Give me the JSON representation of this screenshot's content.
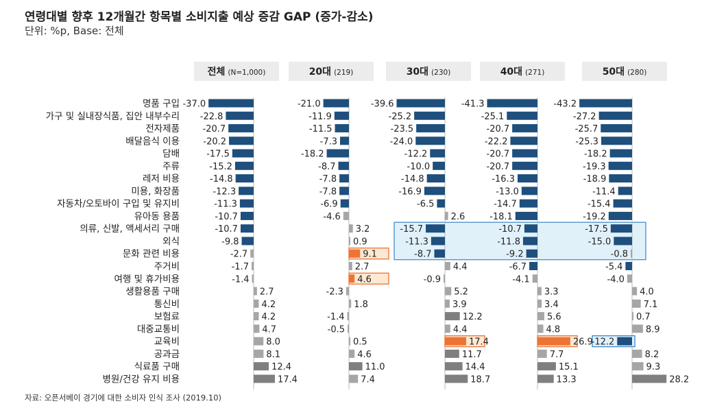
{
  "title": "연령대별 향후 12개월간 항목별 소비지출 예상 증감 GAP (증가-감소)",
  "subtitle": "단위: %p, Base: 전체",
  "source": "자료: 오픈서베이 경기에 대한 소비자 인식 조사 (2019.10)",
  "colors": {
    "negative": "#1e4f7d",
    "positive": "#a6a6a6",
    "positive_large": "#7f7f7f",
    "highlight_bar": "#ed7434",
    "highlight_fill": "#fde8d3",
    "highlight_stroke": "#ed7434",
    "box_fill": "#e1f1fa",
    "box_stroke": "#3a86c8",
    "header_bg": "#ececec"
  },
  "chart_data": {
    "type": "bar",
    "orientation": "horizontal",
    "title": "연령대별 향후 12개월간 항목별 소비지출 예상 증감 GAP (증가-감소)",
    "unit": "%p",
    "categories": [
      "명품 구입",
      "가구 및 실내장식품, 집안 내부수리",
      "전자제품",
      "배달음식 이용",
      "담배",
      "주류",
      "레저 비용",
      "미용, 화장품",
      "자동차/오토바이 구입 및 유지비",
      "유아동 용품",
      "의류, 신발, 액세서리 구매",
      "외식",
      "문화 관련 비용",
      "주거비",
      "여행 및 휴가비용",
      "생활용품 구매",
      "통신비",
      "보험료",
      "대중교통비",
      "교육비",
      "공과금",
      "식료품 구매",
      "병원/건강 유지 비용"
    ],
    "series": [
      {
        "name": "전체",
        "note": "(N=1,000)",
        "values": [
          -37.0,
          -22.8,
          -20.7,
          -20.2,
          -17.5,
          -15.2,
          -14.8,
          -12.3,
          -11.3,
          -10.7,
          -10.7,
          -9.8,
          -2.7,
          -1.7,
          -1.4,
          2.7,
          4.2,
          4.2,
          4.7,
          8.0,
          8.1,
          12.4,
          17.4
        ]
      },
      {
        "name": "20대",
        "note": "(219)",
        "values": [
          -21.0,
          -11.9,
          -11.5,
          -7.3,
          -18.2,
          -8.7,
          -7.8,
          -7.8,
          -6.9,
          -4.6,
          3.2,
          0.9,
          9.1,
          2.7,
          4.6,
          -2.3,
          1.8,
          -1.4,
          -0.5,
          0.5,
          4.6,
          11.0,
          7.4
        ]
      },
      {
        "name": "30대",
        "note": "(230)",
        "values": [
          -39.6,
          -25.2,
          -23.5,
          -24.0,
          -12.2,
          -10.0,
          -14.8,
          -16.9,
          -6.5,
          2.6,
          -15.7,
          -11.3,
          -8.7,
          4.4,
          -0.9,
          5.2,
          3.9,
          12.2,
          4.4,
          17.4,
          11.7,
          14.4,
          18.7
        ]
      },
      {
        "name": "40대",
        "note": "(271)",
        "values": [
          -41.3,
          -25.1,
          -20.7,
          -22.2,
          -20.7,
          -20.7,
          -16.3,
          -13.0,
          -14.7,
          -18.1,
          -10.7,
          -11.8,
          -9.2,
          -6.7,
          -4.1,
          3.3,
          3.4,
          5.6,
          4.8,
          26.9,
          7.7,
          15.1,
          13.3
        ]
      },
      {
        "name": "50대",
        "note": "(280)",
        "values": [
          -43.2,
          -27.2,
          -25.7,
          -25.3,
          -18.2,
          -19.3,
          -18.9,
          -11.4,
          -15.4,
          -19.2,
          -17.5,
          -15.0,
          -0.8,
          -5.4,
          -4.0,
          4.0,
          7.1,
          0.7,
          8.9,
          -12.2,
          8.2,
          9.3,
          28.2
        ]
      }
    ],
    "highlights": [
      {
        "series": "20대",
        "category": "문화 관련 비용",
        "style": "orange"
      },
      {
        "series": "20대",
        "category": "여행 및 휴가비용",
        "style": "orange"
      },
      {
        "series": "30대",
        "category": "교육비",
        "style": "orange"
      },
      {
        "series": "40대",
        "category": "교육비",
        "style": "orange"
      },
      {
        "series": "50대",
        "category": "교육비",
        "style": "blue"
      }
    ],
    "highlight_box": {
      "series": [
        "30대",
        "40대",
        "50대"
      ],
      "categories": [
        "의류, 신발, 액세서리 구매",
        "외식",
        "문화 관련 비용"
      ]
    }
  }
}
